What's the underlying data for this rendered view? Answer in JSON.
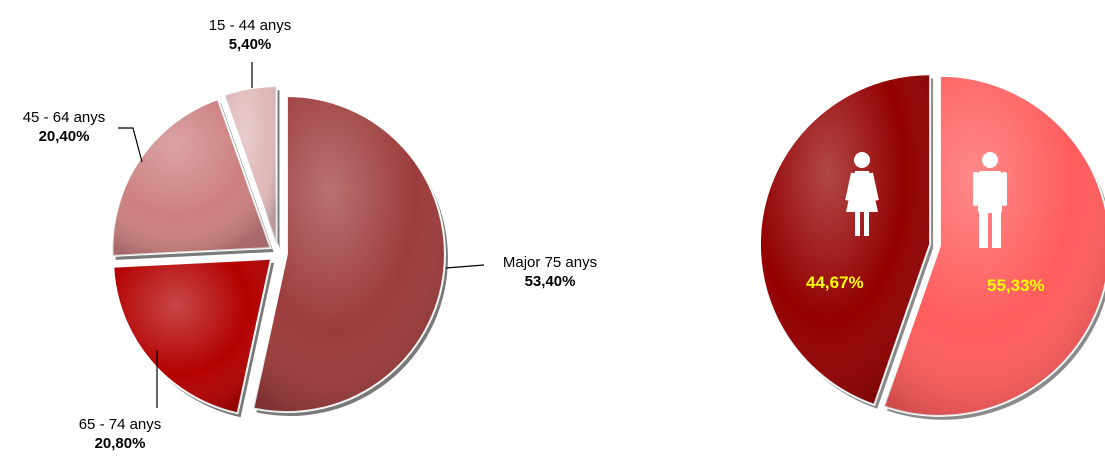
{
  "colors": {
    "major75": "#9c3b3b",
    "a65_74": "#b30000",
    "a45_64": "#cc8080",
    "a15_44": "#dfb8b8",
    "women": "#930000",
    "men": "#ff5c5c",
    "pct_text": "#ffff00"
  },
  "chart_data": [
    {
      "type": "pie",
      "title": "",
      "slices": [
        {
          "label": "Major 75 anys",
          "value": 53.4,
          "display": "53,40%"
        },
        {
          "label": "65 - 74 anys",
          "value": 20.8,
          "display": "20,80%"
        },
        {
          "label": "45 - 64 anys",
          "value": 20.4,
          "display": "20,40%"
        },
        {
          "label": "15 - 44 anys",
          "value": 5.4,
          "display": "5,40%"
        }
      ],
      "exploded": true
    },
    {
      "type": "pie",
      "title": "",
      "slices": [
        {
          "label": "",
          "icon": "woman-icon",
          "value": 44.67,
          "display": "44,67%"
        },
        {
          "label": "",
          "icon": "man-icon",
          "value": 55.33,
          "display": "55,33%"
        }
      ],
      "exploded": true
    }
  ]
}
